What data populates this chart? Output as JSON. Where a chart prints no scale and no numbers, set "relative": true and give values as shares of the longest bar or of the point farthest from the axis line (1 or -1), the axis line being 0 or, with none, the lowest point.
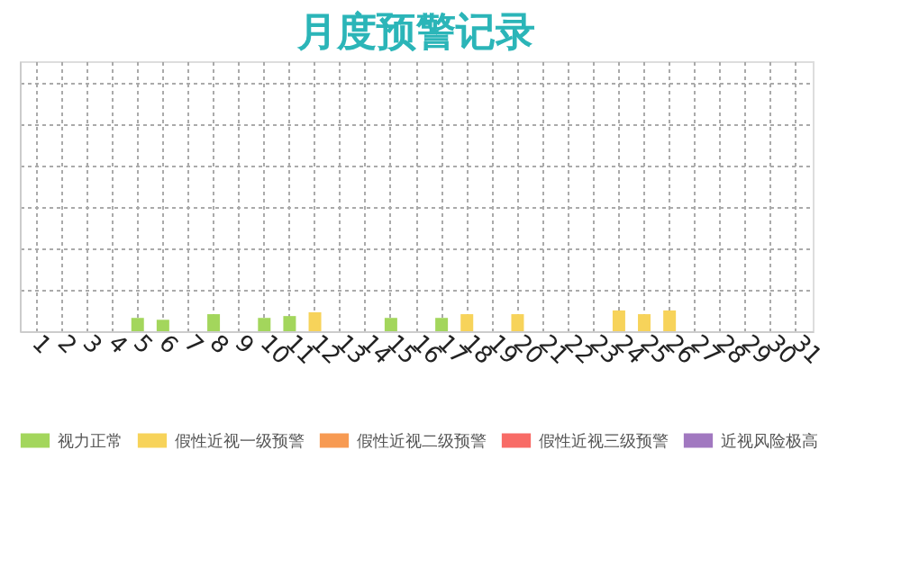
{
  "chart_data": {
    "type": "bar",
    "title": "月度预警记录",
    "relative": true,
    "categories": [
      "1",
      "2",
      "3",
      "4",
      "5",
      "6",
      "7",
      "8",
      "9",
      "10",
      "11",
      "12",
      "13",
      "14",
      "15",
      "16",
      "17",
      "18",
      "19",
      "20",
      "21",
      "22",
      "23",
      "24",
      "25",
      "26",
      "27",
      "28",
      "29",
      "30",
      "31"
    ],
    "series": [
      {
        "name": "视力正常",
        "color": "#a3d65c",
        "values": [
          null,
          null,
          null,
          null,
          0.64,
          0.55,
          null,
          0.82,
          null,
          0.64,
          0.73,
          null,
          null,
          null,
          0.64,
          null,
          0.64,
          null,
          null,
          null,
          null,
          null,
          null,
          null,
          null,
          null,
          null,
          null,
          null,
          null,
          null
        ]
      },
      {
        "name": "假性近视一级预警",
        "color": "#f7d35a",
        "values": [
          null,
          null,
          null,
          null,
          null,
          null,
          null,
          null,
          null,
          null,
          null,
          0.91,
          null,
          null,
          null,
          null,
          null,
          0.82,
          null,
          0.82,
          null,
          null,
          null,
          1,
          0.82,
          1,
          null,
          null,
          null,
          null,
          null
        ]
      },
      {
        "name": "假性近视二级预警",
        "color": "#f79a52",
        "values": [
          null,
          null,
          null,
          null,
          null,
          null,
          null,
          null,
          null,
          null,
          null,
          null,
          null,
          null,
          null,
          null,
          null,
          null,
          null,
          null,
          null,
          null,
          null,
          null,
          null,
          null,
          null,
          null,
          null,
          null,
          null
        ]
      },
      {
        "name": "假性近视三级预警",
        "color": "#f86b66",
        "values": [
          null,
          null,
          null,
          null,
          null,
          null,
          null,
          null,
          null,
          null,
          null,
          null,
          null,
          null,
          null,
          null,
          null,
          null,
          null,
          null,
          null,
          null,
          null,
          null,
          null,
          null,
          null,
          null,
          null,
          null,
          null
        ]
      },
      {
        "name": "近视风险极高",
        "color": "#a178c0",
        "values": [
          null,
          null,
          null,
          null,
          null,
          null,
          null,
          null,
          null,
          null,
          null,
          null,
          null,
          null,
          null,
          null,
          null,
          null,
          null,
          null,
          null,
          null,
          null,
          null,
          null,
          null,
          null,
          null,
          null,
          null,
          null
        ]
      }
    ],
    "grid": true,
    "legend": "bottom"
  }
}
